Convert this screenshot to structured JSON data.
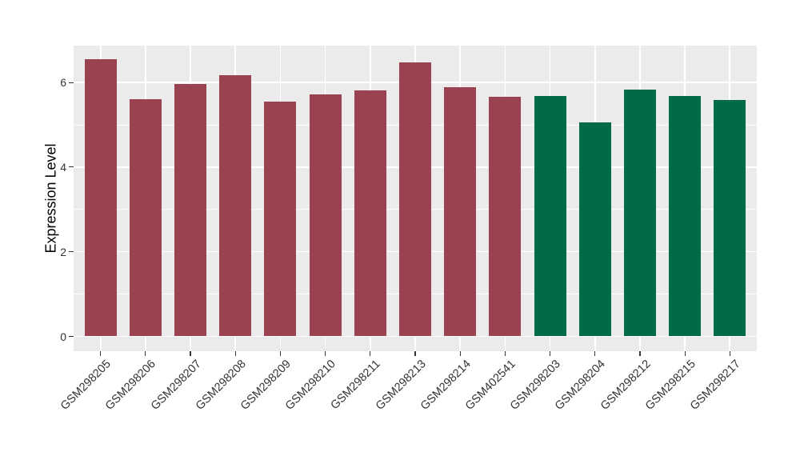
{
  "chart_data": {
    "type": "bar",
    "title": "",
    "xlabel": "",
    "ylabel": "Expression Level",
    "yticks": [
      0,
      2,
      4,
      6
    ],
    "ytick_labels": [
      "0",
      "2",
      "4",
      "6"
    ],
    "minor_yticks": [
      1,
      3,
      5
    ],
    "ylim": [
      0,
      6.9
    ],
    "grid": "white major gridlines at y=0,2,4,6 and x category centers; thin white minor gridlines at y=1,3,5; grey panel",
    "legend_position": "none",
    "x_label_rotation_deg": 45,
    "categories": [
      "GSM298205",
      "GSM298206",
      "GSM298207",
      "GSM298208",
      "GSM298209",
      "GSM298210",
      "GSM298211",
      "GSM298213",
      "GSM298214",
      "GSM402541",
      "GSM298203",
      "GSM298204",
      "GSM298212",
      "GSM298215",
      "GSM298217"
    ],
    "values": [
      6.55,
      5.61,
      5.97,
      6.17,
      5.54,
      5.72,
      5.81,
      6.47,
      5.89,
      5.66,
      5.68,
      5.05,
      5.83,
      5.68,
      5.59
    ],
    "bar_groups": [
      "group1",
      "group1",
      "group1",
      "group1",
      "group1",
      "group1",
      "group1",
      "group1",
      "group1",
      "group1",
      "group2",
      "group2",
      "group2",
      "group2",
      "group2"
    ],
    "group_colors": {
      "group1": "#9A4250",
      "group2": "#026B46"
    },
    "panel_background": "#EBEBEB",
    "grid_color": "#FFFFFF",
    "axis_text_color": "#333333",
    "axis_title_color": "#000000",
    "tick_color": "#333333"
  }
}
